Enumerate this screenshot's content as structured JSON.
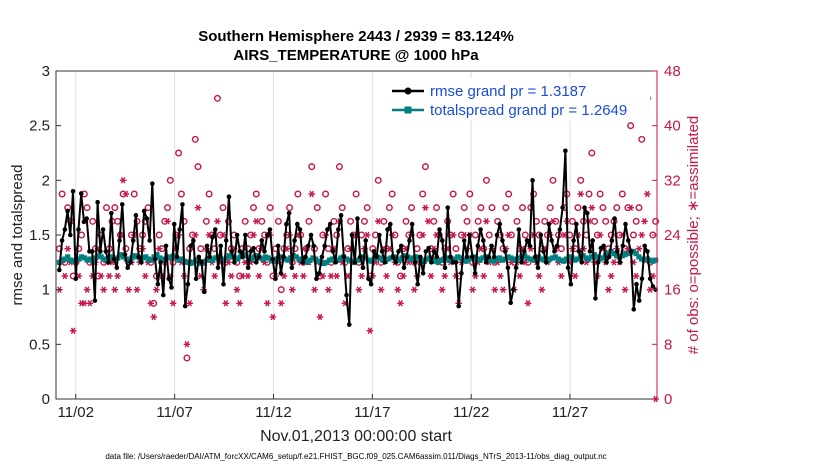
{
  "chart_data": {
    "type": "line",
    "title": "Southern Hemisphere 2443 / 2939 = 83.124%",
    "subtitle": "AIRS_TEMPERATURE @ 1000 hPa",
    "xlabel": "Nov.01,2013 00:00:00 start",
    "ylabel": "rmse and totalspread",
    "ylabel_right": "# of obs: o=possible; ∗=assimilated",
    "x_tick_labels": [
      "11/02",
      "11/07",
      "11/12",
      "11/17",
      "11/22",
      "11/27"
    ],
    "x_tick_days": [
      1,
      6,
      11,
      16,
      21,
      26
    ],
    "xlim_days": [
      0,
      30.4
    ],
    "ylim": [
      0,
      3
    ],
    "y_ticks": [
      "0",
      "0.5",
      "1",
      "1.5",
      "2",
      "2.5",
      "3"
    ],
    "ylim_right": [
      0,
      48
    ],
    "y_ticks_right": [
      "0",
      "8",
      "16",
      "24",
      "32",
      "40",
      "48"
    ],
    "grid": "x-only",
    "legend_placement": "top-right",
    "colors": {
      "rmse": "#000000",
      "spread": "#008080",
      "obs": "#c8164b",
      "legend_text": "#1a4ed8"
    },
    "footer": "data file: /Users/raeder/DAI/ATM_forcXX/CAM6_setup/f.e21.FHIST_BGC.f09_025.CAM6assim.011/Diags_NTrS_2013-11/obs_diag_output.nc",
    "series": [
      {
        "name": "rmse grand pr = 1.3187",
        "axis": "left",
        "color": "#000000",
        "marker": "dot",
        "values": [
          1.18,
          1.45,
          1.55,
          1.72,
          1.5,
          1.9,
          1.1,
          1.55,
          1.88,
          1.62,
          1.65,
          1.35,
          1.35,
          0.9,
          1.8,
          1.35,
          1.55,
          1.35,
          1.25,
          1.7,
          1.28,
          1.2,
          1.45,
          1.78,
          1.32,
          1.2,
          1.25,
          1.45,
          1.68,
          1.3,
          1.25,
          1.72,
          1.65,
          1.45,
          1.97,
          1.28,
          1.05,
          1.25,
          0.95,
          1.4,
          1.1,
          1.02,
          1.6,
          1.3,
          1.55,
          1.78,
          0.85,
          1.05,
          1.4,
          1.45,
          1.1,
          1.3,
          1.25,
          0.98,
          1.4,
          1.3,
          1.48,
          1.55,
          1.2,
          1.4,
          1.05,
          1.45,
          1.85,
          1.35,
          1.25,
          1.5,
          1.35,
          1.3,
          1.5,
          1.2,
          1.35,
          1.38,
          1.25,
          1.3,
          1.45,
          1.35,
          1.5,
          1.55,
          1.28,
          1.1,
          1.4,
          1.15,
          1.3,
          1.6,
          1.7,
          1.2,
          1.45,
          1.6,
          1.55,
          1.25,
          1.3,
          1.4,
          1.5,
          1.4,
          1.1,
          1.15,
          1.3,
          1.4,
          1.55,
          1.6,
          1.35,
          1.25,
          1.55,
          1.68,
          1.3,
          0.95,
          0.68,
          1.5,
          1.25,
          1.65,
          1.3,
          1.2,
          1.45,
          1.1,
          1.05,
          1.35,
          1.3,
          1.5,
          1.35,
          1.25,
          1.55,
          1.6,
          1.3,
          1.25,
          1.35,
          1.4,
          1.2,
          1.3,
          1.45,
          1.6,
          1.25,
          1.05,
          1.3,
          1.15,
          1.35,
          1.38,
          1.25,
          1.35,
          1.3,
          1.55,
          1.45,
          1.2,
          1.75,
          1.3,
          1.25,
          1.25,
          0.85,
          1.15,
          1.45,
          1.3,
          1.5,
          1.3,
          1.15,
          1.4,
          1.55,
          1.45,
          1.25,
          1.3,
          1.4,
          1.3,
          1.5,
          1.6,
          1.45,
          1.35,
          1.2,
          0.88,
          1.0,
          1.2,
          1.55,
          1.25,
          1.35,
          1.45,
          1.4,
          2.0,
          1.3,
          1.2,
          1.5,
          1.35,
          1.25,
          1.6,
          1.45,
          1.35,
          1.4,
          1.55,
          1.75,
          2.27,
          1.2,
          1.05,
          1.45,
          1.6,
          1.35,
          1.25,
          1.75,
          1.7,
          1.35,
          1.45,
          0.92,
          1.25,
          1.38,
          1.4,
          1.25,
          1.3,
          1.45,
          1.65,
          1.35,
          1.25,
          1.4,
          1.6,
          1.45,
          1.35,
          0.82,
          1.05,
          0.9,
          1.1,
          1.4,
          1.35,
          1.1,
          1.03,
          1.0
        ]
      },
      {
        "name": "totalspread grand pr = 1.2649",
        "axis": "left",
        "color": "#008080",
        "marker": "square",
        "values": [
          1.25,
          1.27,
          1.28,
          1.3,
          1.27,
          1.26,
          1.27,
          1.28,
          1.3,
          1.29,
          1.27,
          1.28,
          1.26,
          1.29,
          1.31,
          1.3,
          1.28,
          1.27,
          1.29,
          1.3,
          1.28,
          1.29,
          1.32,
          1.3,
          1.28,
          1.27,
          1.29,
          1.31,
          1.3,
          1.28,
          1.29,
          1.3,
          1.28,
          1.27,
          1.3,
          1.32,
          1.29,
          1.28,
          1.27,
          1.29,
          1.3,
          1.31,
          1.29,
          1.27,
          1.28,
          1.26,
          1.25,
          1.24,
          1.25,
          1.27,
          1.26,
          1.24,
          1.25,
          1.27,
          1.28,
          1.27,
          1.29,
          1.3,
          1.28,
          1.27,
          1.29,
          1.31,
          1.3,
          1.29,
          1.28,
          1.3,
          1.32,
          1.31,
          1.29,
          1.28,
          1.3,
          1.31,
          1.29,
          1.28,
          1.3,
          1.29,
          1.27,
          1.26,
          1.28,
          1.29,
          1.3,
          1.28,
          1.27,
          1.29,
          1.31,
          1.3,
          1.28,
          1.27,
          1.26,
          1.25,
          1.27,
          1.29,
          1.28,
          1.26,
          1.25,
          1.24,
          1.25,
          1.27,
          1.28,
          1.26,
          1.27,
          1.29,
          1.3,
          1.28,
          1.27,
          1.26,
          1.25,
          1.27,
          1.28,
          1.3,
          1.29,
          1.27,
          1.26,
          1.28,
          1.3,
          1.29,
          1.27,
          1.26,
          1.28,
          1.29,
          1.3,
          1.28,
          1.27,
          1.29,
          1.31,
          1.3,
          1.28,
          1.29,
          1.3,
          1.28,
          1.27,
          1.26,
          1.28,
          1.29,
          1.27,
          1.26,
          1.25,
          1.27,
          1.28,
          1.29,
          1.27,
          1.26,
          1.28,
          1.3,
          1.29,
          1.27,
          1.26,
          1.28,
          1.29,
          1.3,
          1.28,
          1.27,
          1.29,
          1.3,
          1.28,
          1.27,
          1.26,
          1.28,
          1.29,
          1.27,
          1.28,
          1.3,
          1.29,
          1.28,
          1.27,
          1.29,
          1.3,
          1.31,
          1.29,
          1.28,
          1.27,
          1.29,
          1.3,
          1.28,
          1.27,
          1.26,
          1.28,
          1.29,
          1.3,
          1.28,
          1.27,
          1.26,
          1.28,
          1.3,
          1.29,
          1.27,
          1.28,
          1.3,
          1.31,
          1.29,
          1.28,
          1.3,
          1.32,
          1.3,
          1.28,
          1.29,
          1.31,
          1.33,
          1.35,
          1.33,
          1.31,
          1.3,
          1.31,
          1.32,
          1.33,
          1.34,
          1.35,
          1.33,
          1.3,
          1.28,
          1.27,
          1.28,
          1.27,
          1.26,
          1.27
        ]
      },
      {
        "name": "obs possible",
        "axis": "right",
        "color": "#c8164b",
        "marker": "circle",
        "values": [
          22,
          30,
          20,
          28,
          26,
          18,
          20,
          22,
          24,
          30,
          28,
          20,
          26,
          22,
          18,
          24,
          20,
          28,
          22,
          26,
          28,
          26,
          24,
          30,
          22,
          20,
          24,
          30,
          26,
          22,
          24,
          26,
          28,
          20,
          14,
          18,
          24,
          22,
          26,
          28,
          32,
          20,
          24,
          36,
          30,
          26,
          6,
          22,
          24,
          38,
          34,
          22,
          20,
          26,
          30,
          24,
          22,
          44,
          24,
          28,
          20,
          26,
          22,
          24,
          20,
          18,
          22,
          26,
          22,
          24,
          28,
          30,
          22,
          26,
          24,
          20,
          28,
          18,
          22,
          26,
          16,
          22,
          24,
          28,
          20,
          22,
          30,
          24,
          20,
          22,
          26,
          34,
          22,
          28,
          18,
          24,
          30,
          22,
          20,
          26,
          24,
          34,
          28,
          20,
          22,
          26,
          24,
          30,
          20,
          24,
          26,
          28,
          18,
          22,
          24,
          32,
          20,
          26,
          22,
          28,
          30,
          24,
          20,
          18,
          22,
          26,
          24,
          28,
          20,
          22,
          24,
          30,
          34,
          42,
          22,
          26,
          28,
          24,
          20,
          22,
          26,
          24,
          30,
          22,
          18,
          24,
          28,
          26,
          30,
          20,
          24,
          26,
          28,
          22,
          32,
          24,
          28,
          20,
          26,
          24,
          22,
          28,
          30,
          24,
          20,
          26,
          22,
          28,
          24,
          20,
          28,
          30,
          26,
          24,
          22,
          26,
          24,
          28,
          32,
          26,
          24,
          22,
          28,
          30,
          24,
          26,
          22,
          28,
          32,
          26,
          24,
          30,
          36,
          26,
          24,
          30,
          28,
          26,
          22,
          24,
          26,
          28,
          24,
          30,
          22,
          28,
          40,
          24,
          26,
          28,
          38,
          42,
          44,
          20,
          24,
          26
        ]
      },
      {
        "name": "obs assimilated",
        "axis": "right",
        "color": "#c8164b",
        "marker": "asterisk",
        "values": [
          16,
          20,
          18,
          22,
          20,
          10,
          20,
          18,
          14,
          14,
          16,
          14,
          18,
          20,
          22,
          18,
          16,
          20,
          18,
          20,
          16,
          18,
          24,
          32,
          30,
          16,
          20,
          24,
          16,
          20,
          22,
          18,
          20,
          14,
          12,
          16,
          22,
          18,
          20,
          26,
          18,
          14,
          22,
          24,
          20,
          18,
          8,
          14,
          20,
          24,
          28,
          18,
          16,
          22,
          24,
          20,
          18,
          26,
          20,
          24,
          14,
          20,
          18,
          22,
          16,
          14,
          18,
          20,
          18,
          20,
          24,
          26,
          18,
          22,
          20,
          14,
          24,
          12,
          18,
          20,
          14,
          18,
          22,
          24,
          16,
          18,
          24,
          20,
          18,
          22,
          20,
          30,
          16,
          20,
          12,
          18,
          24,
          16,
          18,
          22,
          18,
          26,
          20,
          14,
          18,
          22,
          20,
          24,
          16,
          18,
          22,
          24,
          10,
          18,
          20,
          26,
          16,
          22,
          18,
          22,
          24,
          20,
          16,
          14,
          18,
          22,
          20,
          24,
          16,
          18,
          20,
          24,
          28,
          26,
          18,
          22,
          24,
          20,
          16,
          18,
          22,
          20,
          24,
          18,
          14,
          20,
          24,
          22,
          24,
          16,
          18,
          20,
          22,
          18,
          26,
          20,
          22,
          16,
          20,
          18,
          16,
          22,
          24,
          20,
          16,
          20,
          18,
          22,
          20,
          14,
          22,
          24,
          20,
          18,
          16,
          22,
          20,
          24,
          26,
          22,
          20,
          18,
          24,
          26,
          20,
          22,
          18,
          24,
          30,
          22,
          20,
          26,
          28,
          20,
          18,
          24,
          22,
          20,
          16,
          18,
          20,
          22,
          20,
          24,
          16,
          22,
          28,
          20,
          18,
          22,
          24,
          26,
          30,
          16,
          18,
          0
        ]
      }
    ]
  }
}
